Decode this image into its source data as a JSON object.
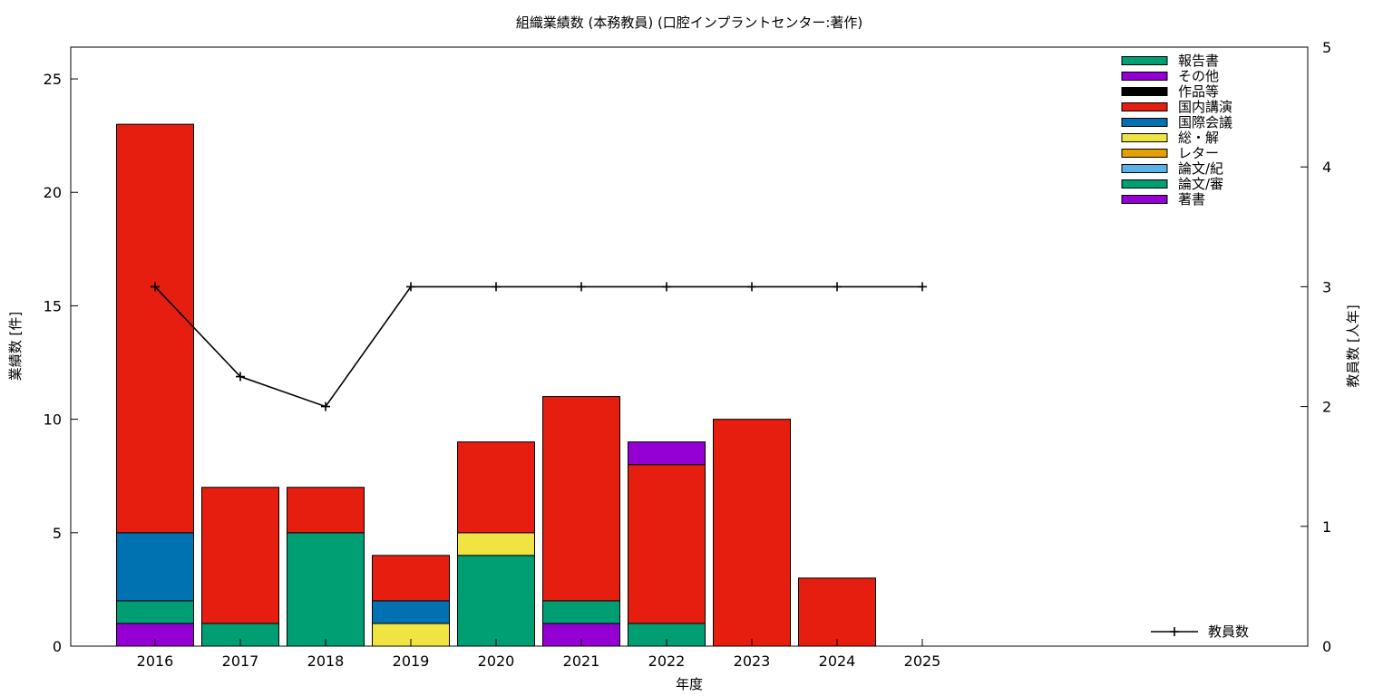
{
  "chart_data": {
    "type": "bar",
    "title": "組織業績数 (本務教員) (口腔インプラントセンター:著作)",
    "xlabel": "年度",
    "ylabel": "業績数 [件]",
    "y2label": "教員数 [人年]",
    "categories": [
      "2016",
      "2017",
      "2018",
      "2019",
      "2020",
      "2021",
      "2022",
      "2023",
      "2024",
      "2025"
    ],
    "ylim": [
      0,
      26.4
    ],
    "yticks": [
      0,
      5,
      10,
      15,
      20,
      25
    ],
    "y2lim": [
      0,
      5
    ],
    "y2ticks": [
      0,
      1,
      2,
      3,
      4,
      5
    ],
    "stack_order": [
      "著書",
      "論文/審",
      "論文/紀",
      "レター",
      "総・解",
      "国際会議",
      "国内講演",
      "作品等",
      "その他",
      "報告書"
    ],
    "series": [
      {
        "name": "報告書",
        "color": "#009e73",
        "values": [
          0,
          0,
          0,
          0,
          0,
          0,
          0,
          0,
          0,
          0
        ]
      },
      {
        "name": "その他",
        "color": "#9400d3",
        "values": [
          0,
          0,
          0,
          0,
          0,
          0,
          1,
          0,
          0,
          0
        ]
      },
      {
        "name": "作品等",
        "color": "#000000",
        "values": [
          0,
          0,
          0,
          0,
          0,
          0,
          0,
          0,
          0,
          0
        ]
      },
      {
        "name": "国内講演",
        "color": "#e51e10",
        "values": [
          18,
          6,
          2,
          2,
          4,
          9,
          7,
          10,
          3,
          0
        ]
      },
      {
        "name": "国際会議",
        "color": "#0072b2",
        "values": [
          3,
          0,
          0,
          1,
          0,
          0,
          0,
          0,
          0,
          0
        ]
      },
      {
        "name": "総・解",
        "color": "#f0e442",
        "values": [
          0,
          0,
          0,
          1,
          1,
          0,
          0,
          0,
          0,
          0
        ]
      },
      {
        "name": "レター",
        "color": "#e69f00",
        "values": [
          0,
          0,
          0,
          0,
          0,
          0,
          0,
          0,
          0,
          0
        ]
      },
      {
        "name": "論文/紀",
        "color": "#56b4e9",
        "values": [
          0,
          0,
          0,
          0,
          0,
          0,
          0,
          0,
          0,
          0
        ]
      },
      {
        "name": "論文/審",
        "color": "#009e73",
        "values": [
          1,
          1,
          5,
          0,
          4,
          1,
          1,
          0,
          0,
          0
        ]
      },
      {
        "name": "著書",
        "color": "#9400d3",
        "values": [
          1,
          0,
          0,
          0,
          0,
          1,
          0,
          0,
          0,
          0
        ]
      }
    ],
    "line_series": {
      "name": "教員数",
      "axis": "y2",
      "color": "#000000",
      "values": [
        3,
        2.25,
        2,
        3,
        3,
        3,
        3,
        3,
        3,
        3
      ]
    },
    "legend_position": "top-right",
    "grid": false
  }
}
